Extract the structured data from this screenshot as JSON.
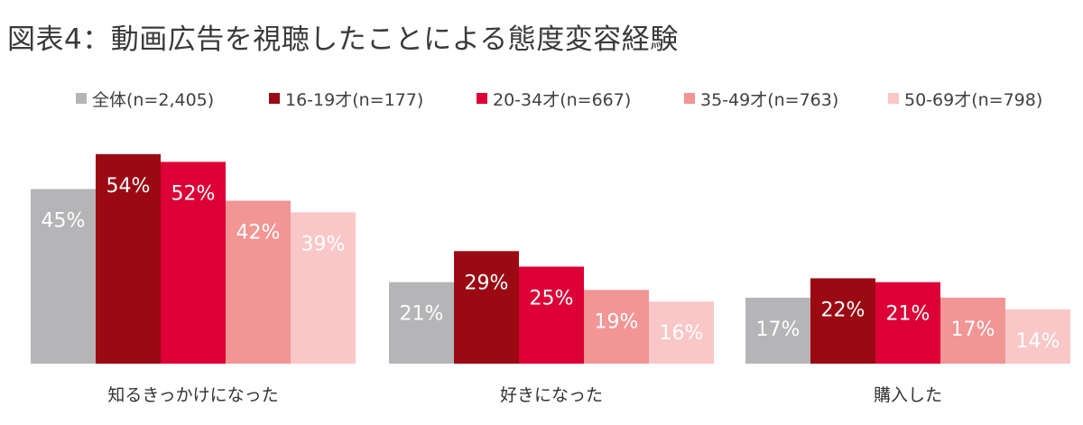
{
  "chart_data": {
    "type": "bar",
    "title": "図表4：動画広告を視聴したことによる態度変容経験",
    "xlabel": "",
    "ylabel": "",
    "ylim": [
      0,
      60
    ],
    "grid": false,
    "legend_position": "top",
    "categories": [
      "知るきっかけになった",
      "好きになった",
      "購入した"
    ],
    "series": [
      {
        "name": "全体(n=2,405)",
        "color": "#B5B5B8",
        "values": [
          45,
          21,
          17
        ],
        "labels": [
          "45%",
          "21%",
          "17%"
        ]
      },
      {
        "name": "16-19才(n=177)",
        "color": "#9B0A13",
        "values": [
          54,
          29,
          22
        ],
        "labels": [
          "54%",
          "29%",
          "22%"
        ]
      },
      {
        "name": "20-34才(n=667)",
        "color": "#DC0036",
        "values": [
          52,
          25,
          21
        ],
        "labels": [
          "52%",
          "25%",
          "21%"
        ]
      },
      {
        "name": "35-49才(n=763)",
        "color": "#F29595",
        "values": [
          42,
          19,
          17
        ],
        "labels": [
          "42%",
          "19%",
          "17%"
        ]
      },
      {
        "name": "50-69才(n=798)",
        "color": "#F9C7C7",
        "values": [
          39,
          16,
          14
        ],
        "labels": [
          "39%",
          "16%",
          "14%"
        ]
      }
    ]
  }
}
